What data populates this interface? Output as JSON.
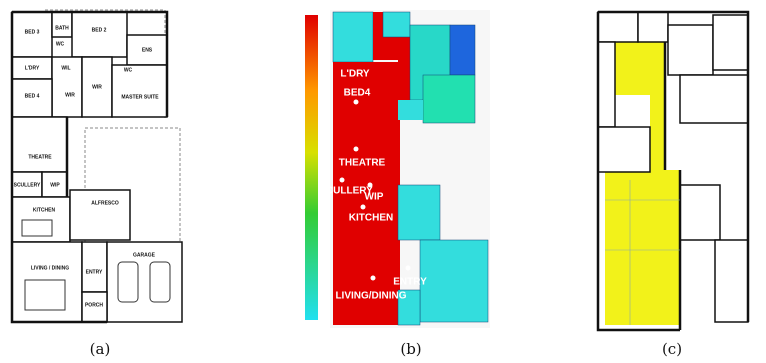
{
  "plan": {
    "rooms": [
      "BED 3",
      "BATH",
      "BED 2",
      "WC",
      "ENS",
      "L'DRY",
      "WIL",
      "WC",
      "BED 4",
      "WIR",
      "WIR",
      "MASTER SUITE",
      "THEATRE",
      "SCULLERY",
      "WIP",
      "KITCHEN",
      "ALFRESCO",
      "LIVING / DINING",
      "ENTRY",
      "GARAGE",
      "PORCH"
    ],
    "caption": "(a)"
  },
  "heatmap": {
    "labels": [
      "L'DRY",
      "BED4",
      "THEATRE",
      "SCULLERY",
      "WIP",
      "KITCHEN",
      "ENTRY",
      "LIVING/DINING"
    ],
    "caption": "(b)"
  },
  "overlay": {
    "caption": "(c)"
  }
}
